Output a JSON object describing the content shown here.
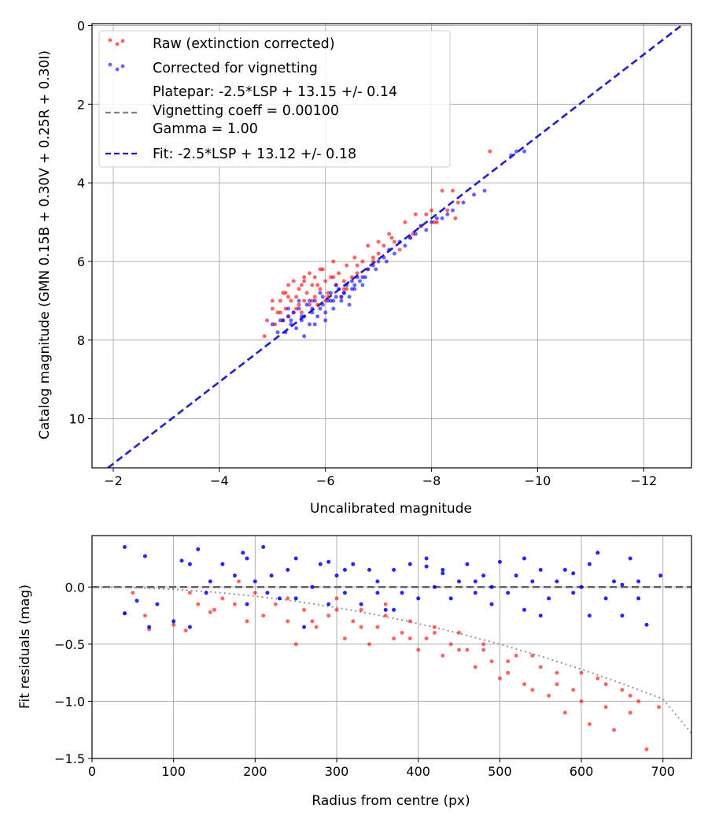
{
  "chart_data": [
    {
      "type": "scatter",
      "xlabel": "Uncalibrated magnitude",
      "ylabel": "Catalog magnitude (GMN 0.15B + 0.30V + 0.25R + 0.30I)",
      "xlim": [
        -1.6,
        -12.9
      ],
      "ylim": [
        11.25,
        -0.05
      ],
      "x_inverted": true,
      "y_inverted": true,
      "grid": true,
      "xticks": [
        -2,
        -4,
        -6,
        -8,
        -10,
        -12
      ],
      "xtick_labels": [
        "−2",
        "−4",
        "−6",
        "−8",
        "−10",
        "−12"
      ],
      "yticks": [
        0,
        2,
        4,
        6,
        8,
        10
      ],
      "ytick_labels": [
        "0",
        "2",
        "4",
        "6",
        "8",
        "10"
      ],
      "legend_position": "top-left",
      "legend": [
        {
          "label": "Raw (extinction corrected)",
          "marker": "dot",
          "color": "#ff0000"
        },
        {
          "label": "Corrected for vignetting",
          "marker": "dot",
          "color": "#0000ff"
        },
        {
          "label_lines": [
            "Platepar: -2.5*LSP + 13.15 +/- 0.14",
            "Vignetting coeff = 0.00100",
            "Gamma = 1.00"
          ],
          "marker": "dashed",
          "color": "#808080"
        },
        {
          "label": "Fit: -2.5*LSP + 13.12 +/- 0.18",
          "marker": "dashed",
          "color": "#0000cc"
        }
      ],
      "series": [
        {
          "name": "Platepar fit line",
          "kind": "line",
          "style": "dashed",
          "color": "#808080",
          "x": [
            -1.9,
            -12.9
          ],
          "y": [
            11.25,
            -0.2
          ]
        },
        {
          "name": "Fit line",
          "kind": "line",
          "style": "dashed",
          "color": "#1a1acc",
          "x": [
            -1.9,
            -12.9
          ],
          "y": [
            11.25,
            -0.2
          ]
        },
        {
          "name": "Raw (extinction corrected)",
          "kind": "scatter",
          "color": "#ff0000",
          "x": [
            -4.85,
            -4.9,
            -5.0,
            -5.05,
            -5.1,
            -5.15,
            -5.2,
            -5.2,
            -5.25,
            -5.3,
            -5.3,
            -5.35,
            -5.4,
            -5.4,
            -5.45,
            -5.5,
            -5.5,
            -5.55,
            -5.6,
            -5.6,
            -5.65,
            -5.7,
            -5.7,
            -5.75,
            -5.8,
            -5.8,
            -5.85,
            -5.9,
            -5.95,
            -6.0,
            -6.0,
            -6.05,
            -6.1,
            -6.15,
            -6.2,
            -6.25,
            -6.3,
            -6.35,
            -6.4,
            -6.5,
            -6.55,
            -6.6,
            -6.7,
            -6.8,
            -6.9,
            -7.0,
            -7.1,
            -7.2,
            -7.3,
            -7.5,
            -7.6,
            -7.7,
            -7.8,
            -7.9,
            -8.0,
            -8.1,
            -8.2,
            -8.3,
            -8.4,
            -8.5,
            -9.1,
            -5.3,
            -5.6,
            -5.9,
            -6.4,
            -6.8,
            -7.4,
            -5.0,
            -5.25,
            -5.55,
            -5.85,
            -6.15,
            -6.6,
            -7.0,
            -5.15,
            -5.45,
            -5.75,
            -6.05,
            -6.35,
            -6.9,
            -7.25,
            -7.65,
            -8.05,
            -8.45
          ],
          "y": [
            7.9,
            7.5,
            7.2,
            7.6,
            7.3,
            7.0,
            7.5,
            6.8,
            7.2,
            7.4,
            6.6,
            7.0,
            6.5,
            7.3,
            6.9,
            7.1,
            6.7,
            7.3,
            6.4,
            7.0,
            6.8,
            6.3,
            7.1,
            6.6,
            6.9,
            6.4,
            7.1,
            6.7,
            6.2,
            6.5,
            7.0,
            6.8,
            6.4,
            6.0,
            6.6,
            6.3,
            6.9,
            6.5,
            6.1,
            6.4,
            5.9,
            6.3,
            6.0,
            5.6,
            5.9,
            5.5,
            5.6,
            5.3,
            5.5,
            5.0,
            5.4,
            4.8,
            5.1,
            4.8,
            4.7,
            5.0,
            4.2,
            4.7,
            4.2,
            4.5,
            3.2,
            6.9,
            6.5,
            6.2,
            6.7,
            6.2,
            5.7,
            7.0,
            6.8,
            6.6,
            6.6,
            6.4,
            6.1,
            5.8,
            7.3,
            7.2,
            7.0,
            6.9,
            6.7,
            6.0,
            5.4,
            5.3,
            5.0,
            4.9
          ]
        },
        {
          "name": "Corrected for vignetting",
          "kind": "scatter",
          "color": "#0000ff",
          "x": [
            -5.0,
            -5.1,
            -5.2,
            -5.25,
            -5.3,
            -5.35,
            -5.4,
            -5.45,
            -5.5,
            -5.55,
            -5.6,
            -5.65,
            -5.7,
            -5.75,
            -5.8,
            -5.85,
            -5.9,
            -5.95,
            -6.0,
            -6.05,
            -6.1,
            -6.15,
            -6.2,
            -6.25,
            -6.3,
            -6.35,
            -6.4,
            -6.45,
            -6.5,
            -6.55,
            -6.6,
            -6.7,
            -6.8,
            -6.9,
            -7.0,
            -7.1,
            -7.2,
            -7.3,
            -7.4,
            -7.5,
            -7.6,
            -7.7,
            -7.8,
            -7.9,
            -8.0,
            -8.1,
            -8.2,
            -8.3,
            -8.4,
            -8.6,
            -8.8,
            -9.0,
            -9.5,
            -9.6,
            -9.75,
            -5.15,
            -5.35,
            -5.55,
            -5.75,
            -5.95,
            -6.15,
            -6.35,
            -6.55,
            -6.75,
            -5.3,
            -5.5,
            -5.7,
            -5.9,
            -6.1,
            -6.3,
            -6.5,
            -6.7,
            -6.95,
            -7.15,
            -5.6,
            -5.8,
            -6.0,
            -6.2,
            -6.45,
            -6.65
          ],
          "y": [
            7.6,
            7.8,
            7.5,
            7.8,
            7.4,
            7.6,
            7.3,
            7.7,
            7.2,
            7.5,
            7.4,
            7.1,
            7.6,
            7.3,
            7.0,
            7.4,
            7.2,
            6.9,
            7.3,
            7.0,
            6.8,
            7.2,
            6.9,
            6.7,
            7.0,
            6.8,
            6.6,
            6.9,
            6.5,
            6.7,
            6.4,
            6.4,
            6.2,
            6.1,
            6.0,
            5.9,
            5.7,
            5.8,
            5.5,
            5.6,
            5.4,
            5.3,
            5.1,
            5.2,
            5.0,
            4.9,
            4.9,
            4.8,
            4.7,
            4.5,
            4.3,
            4.2,
            3.3,
            3.2,
            3.2,
            7.5,
            7.5,
            7.4,
            7.2,
            7.1,
            7.0,
            6.8,
            6.6,
            6.4,
            7.2,
            7.0,
            7.0,
            6.8,
            7.0,
            6.9,
            6.7,
            6.6,
            6.2,
            6.0,
            7.9,
            7.6,
            7.5,
            6.6,
            7.1,
            6.5
          ]
        }
      ]
    },
    {
      "type": "scatter",
      "xlabel": "Radius from centre (px)",
      "ylabel": "Fit residuals (mag)",
      "xlim": [
        0,
        735
      ],
      "ylim": [
        -1.5,
        0.45
      ],
      "grid": true,
      "xticks": [
        0,
        100,
        200,
        300,
        400,
        500,
        600,
        700
      ],
      "xtick_labels": [
        "0",
        "100",
        "200",
        "300",
        "400",
        "500",
        "600",
        "700"
      ],
      "yticks": [
        -1.5,
        -1.0,
        -0.5,
        0.0
      ],
      "ytick_labels": [
        "−1.5",
        "−1.0",
        "−0.5",
        "0.0"
      ],
      "series": [
        {
          "name": "Zero line",
          "kind": "line",
          "style": "dashed",
          "color": "#666666",
          "x": [
            0,
            735
          ],
          "y": [
            0,
            0
          ]
        },
        {
          "name": "Vignetting model",
          "kind": "line",
          "style": "dotted",
          "color": "#808080",
          "x": [
            0,
            50,
            100,
            150,
            200,
            250,
            300,
            350,
            400,
            450,
            500,
            550,
            600,
            650,
            700,
            735
          ],
          "y": [
            0,
            -0.005,
            -0.02,
            -0.045,
            -0.08,
            -0.125,
            -0.18,
            -0.245,
            -0.32,
            -0.405,
            -0.5,
            -0.605,
            -0.72,
            -0.845,
            -0.98,
            -1.28
          ]
        },
        {
          "name": "Raw residuals",
          "kind": "scatter",
          "color": "#ff0000",
          "x": [
            40,
            50,
            65,
            70,
            100,
            115,
            130,
            145,
            160,
            175,
            190,
            200,
            210,
            225,
            240,
            250,
            260,
            275,
            290,
            300,
            310,
            320,
            330,
            340,
            350,
            360,
            370,
            380,
            390,
            400,
            410,
            420,
            430,
            440,
            450,
            460,
            470,
            480,
            490,
            500,
            510,
            520,
            530,
            540,
            550,
            560,
            570,
            580,
            590,
            600,
            610,
            620,
            630,
            640,
            650,
            660,
            670,
            680,
            695,
            120,
            180,
            240,
            300,
            360,
            420,
            480,
            540,
            600,
            660,
            150,
            270,
            390,
            510,
            630,
            330,
            450,
            570
          ],
          "y": [
            -0.23,
            -0.05,
            -0.25,
            -0.37,
            -0.33,
            -0.38,
            -0.15,
            -0.22,
            -0.1,
            -0.15,
            -0.3,
            -0.05,
            -0.25,
            -0.15,
            -0.3,
            -0.5,
            -0.2,
            -0.35,
            -0.25,
            -0.1,
            -0.45,
            -0.3,
            -0.2,
            -0.5,
            -0.35,
            -0.25,
            -0.45,
            -0.4,
            -0.3,
            -0.55,
            -0.45,
            -0.35,
            -0.6,
            -0.5,
            -0.4,
            -0.55,
            -0.7,
            -0.55,
            -0.65,
            -0.8,
            -0.75,
            -0.6,
            -0.85,
            -0.9,
            -0.7,
            -0.95,
            -0.85,
            -1.1,
            -0.9,
            -1.0,
            -1.2,
            -0.8,
            -1.05,
            -1.25,
            -0.9,
            -1.1,
            -1.0,
            -1.42,
            -1.05,
            -0.05,
            0.05,
            -0.1,
            -0.2,
            -0.15,
            -0.4,
            -0.5,
            -0.6,
            -0.75,
            -0.95,
            -0.2,
            -0.3,
            -0.45,
            -0.65,
            -0.85,
            -0.35,
            -0.55,
            -0.75
          ]
        },
        {
          "name": "Corrected residuals",
          "kind": "scatter",
          "color": "#0000ff",
          "x": [
            40,
            40,
            55,
            65,
            70,
            80,
            100,
            110,
            120,
            130,
            140,
            145,
            160,
            175,
            185,
            190,
            200,
            210,
            215,
            220,
            230,
            240,
            250,
            260,
            270,
            280,
            290,
            300,
            310,
            320,
            330,
            340,
            350,
            360,
            370,
            380,
            390,
            400,
            410,
            420,
            430,
            440,
            450,
            460,
            470,
            480,
            490,
            500,
            510,
            520,
            530,
            540,
            550,
            560,
            570,
            580,
            590,
            600,
            610,
            620,
            630,
            640,
            650,
            660,
            670,
            680,
            697,
            120,
            190,
            250,
            310,
            370,
            430,
            490,
            550,
            610,
            670,
            290,
            350,
            410,
            470,
            530,
            590,
            650
          ],
          "y": [
            0.35,
            -0.23,
            -0.12,
            0.27,
            -0.35,
            -0.15,
            -0.3,
            0.23,
            0.2,
            0.33,
            -0.05,
            0.05,
            0.2,
            0.1,
            0.3,
            -0.15,
            0.05,
            0.35,
            -0.05,
            0.1,
            -0.1,
            0.15,
            0.25,
            -0.35,
            0.0,
            0.2,
            -0.15,
            0.1,
            -0.05,
            0.2,
            -0.15,
            0.15,
            0.05,
            -0.2,
            0.15,
            -0.05,
            0.2,
            -0.1,
            0.25,
            0.0,
            0.15,
            -0.1,
            0.05,
            0.2,
            -0.05,
            0.1,
            -0.15,
            0.22,
            -0.05,
            0.1,
            -0.2,
            0.05,
            0.15,
            -0.1,
            0.05,
            0.15,
            -0.05,
            0.0,
            -0.25,
            0.3,
            -0.1,
            0.05,
            -0.25,
            0.25,
            -0.1,
            -0.33,
            0.1,
            -0.35,
            0.25,
            -0.1,
            0.15,
            -0.2,
            0.12,
            0.0,
            -0.25,
            0.2,
            0.05,
            0.22,
            -0.05,
            0.18,
            0.05,
            0.25,
            0.12,
            0.02
          ]
        }
      ]
    }
  ]
}
